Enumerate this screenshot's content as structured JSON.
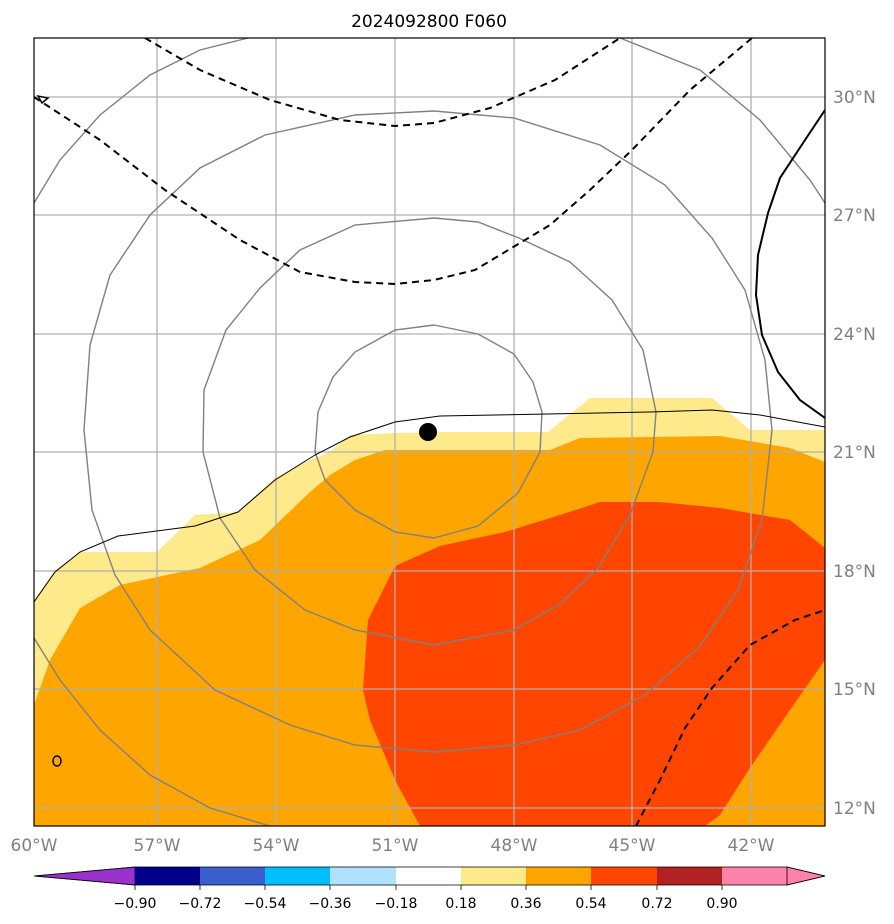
{
  "title": "2024092800 F060",
  "map": {
    "lon_range": [
      -60,
      -40
    ],
    "lat_range": [
      11.5,
      31.5
    ],
    "lon_ticks": [
      -60,
      -57,
      -54,
      -51,
      -48,
      -45,
      -42
    ],
    "lat_ticks": [
      12,
      15,
      18,
      21,
      24,
      27,
      30
    ],
    "lon_tick_labels": [
      "60°W",
      "57°W",
      "54°W",
      "51°W",
      "48°W",
      "45°W",
      "42°W"
    ],
    "lat_tick_labels": [
      "12°N",
      "15°N",
      "18°N",
      "21°N",
      "24°N",
      "27°N",
      "30°N"
    ],
    "gridlines": true,
    "center_marker": {
      "lon": -50.2,
      "lat": 21.5
    },
    "colors": {
      "light_yellow": "#fee98b",
      "orange": "#ffa500",
      "red_orange": "#ff4500",
      "grid": "#b0b0b0",
      "rings": "#808080"
    }
  },
  "colorbar": {
    "tick_labels": [
      "−0.90",
      "−0.72",
      "−0.54",
      "−0.36",
      "−0.18",
      "0.18",
      "0.36",
      "0.54",
      "0.72",
      "0.90"
    ],
    "colors": [
      "#9932cc",
      "#00008b",
      "#3a5fcd",
      "#00bfff",
      "#b0e2ff",
      "#ffffff",
      "#fee98b",
      "#ffa500",
      "#ff4500",
      "#b22222",
      "#ff82ab",
      "#ff82ab"
    ]
  }
}
